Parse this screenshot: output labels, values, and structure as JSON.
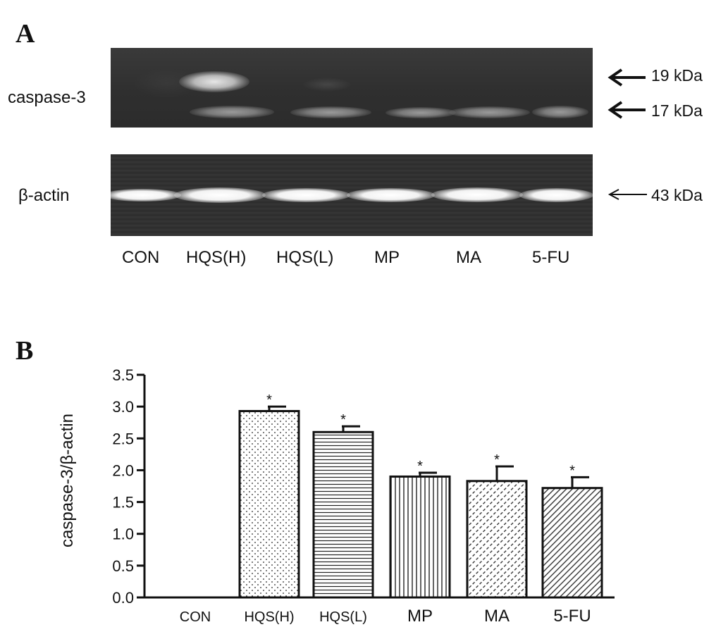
{
  "panel_a": {
    "letter": "A",
    "blot_top_label": "caspase-3",
    "blot_bottom_label": "β-actin",
    "markers": [
      "19 kDa",
      "17 kDa",
      "43 kDa"
    ],
    "lanes": [
      "CON",
      "HQS(H)",
      "HQS(L)",
      "MP",
      "MA",
      "5-FU"
    ]
  },
  "panel_b": {
    "letter": "B"
  },
  "chart_data": {
    "type": "bar",
    "title": "",
    "xlabel": "",
    "ylabel": "caspase-3/β-actin",
    "ylim": [
      0,
      3.5
    ],
    "yticks": [
      "0.0",
      "0.5",
      "1.0",
      "1.5",
      "2.0",
      "2.5",
      "3.0",
      "3.5"
    ],
    "categories": [
      "CON",
      "HQS(H)",
      "HQS(L)",
      "MP",
      "MA",
      "5-FU"
    ],
    "values": [
      0,
      2.93,
      2.6,
      1.9,
      1.83,
      1.72
    ],
    "error": [
      0,
      0.07,
      0.09,
      0.06,
      0.23,
      0.17
    ],
    "significance": [
      "",
      "*",
      "*",
      "*",
      "*",
      "*"
    ],
    "patterns": [
      "none",
      "dots",
      "horizontal-lines",
      "vertical-lines",
      "diagonal-dashes",
      "diagonal-lines"
    ],
    "grid": false,
    "legend": "none"
  }
}
